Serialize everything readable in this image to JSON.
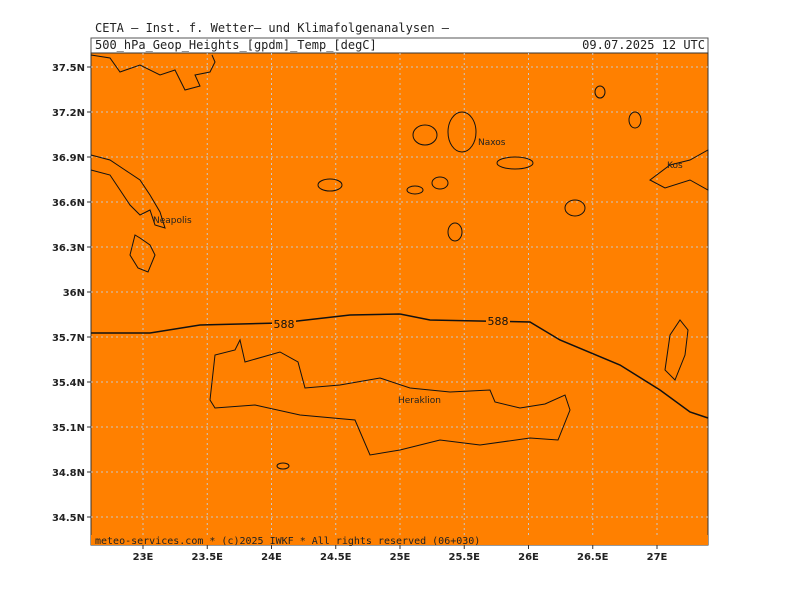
{
  "header": {
    "title": "CETA — Inst. f. Wetter— und Klimafolgenanalysen —",
    "subtitle": "500_hPa_Geop_Heights_[gpdm]_Temp_[degC]",
    "date": "09.07.2025 12 UTC"
  },
  "axes": {
    "x_labels": [
      "23E",
      "23.5E",
      "24E",
      "24.5E",
      "25E",
      "25.5E",
      "26E",
      "26.5E",
      "27E"
    ],
    "y_labels": [
      "37.5N",
      "37.2N",
      "36.9N",
      "36.6N",
      "36.3N",
      "36N",
      "35.7N",
      "35.4N",
      "35.1N",
      "34.8N",
      "34.5N"
    ]
  },
  "places": [
    "Neapolis",
    "Naxos",
    "Kos",
    "Heraklion"
  ],
  "contour_labels": [
    "588",
    "588"
  ],
  "footer": "meteo-services.com * (c)2025 IWKF * All rights reserved (06+030)"
}
